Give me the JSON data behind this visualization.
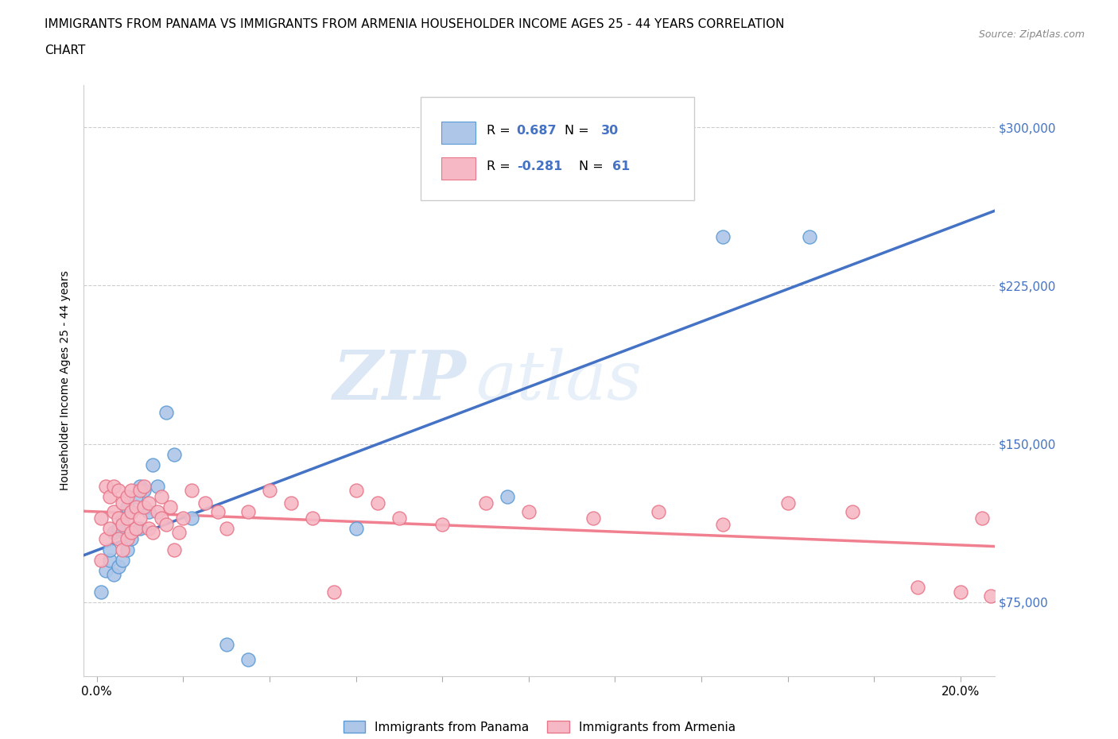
{
  "title_line1": "IMMIGRANTS FROM PANAMA VS IMMIGRANTS FROM ARMENIA HOUSEHOLDER INCOME AGES 25 - 44 YEARS CORRELATION",
  "title_line2": "CHART",
  "source_text": "Source: ZipAtlas.com",
  "ylabel": "Householder Income Ages 25 - 44 years",
  "x_ticks": [
    0.0,
    0.02,
    0.04,
    0.06,
    0.08,
    0.1,
    0.12,
    0.14,
    0.16,
    0.18,
    0.2
  ],
  "x_tick_labels_sparse": {
    "0.0": "0.0%",
    "0.10": "",
    "0.20": "20.0%"
  },
  "y_ticks": [
    75000,
    150000,
    225000,
    300000
  ],
  "y_tick_labels": [
    "$75,000",
    "$150,000",
    "$225,000",
    "$300,000"
  ],
  "ylim": [
    40000,
    320000
  ],
  "xlim": [
    -0.003,
    0.208
  ],
  "panama_color": "#aec6e8",
  "armenia_color": "#f5b8c4",
  "panama_edge_color": "#5b9bd5",
  "armenia_edge_color": "#e8768a",
  "panama_line_color": "#4472c4",
  "armenia_line_color": "#f08090",
  "panama_R": 0.687,
  "panama_N": 30,
  "armenia_R": -0.281,
  "armenia_N": 61,
  "watermark_zip": "ZIP",
  "watermark_atlas": "atlas",
  "legend_label_panama": "Immigrants from Panama",
  "legend_label_armenia": "Immigrants from Armenia",
  "panama_scatter_x": [
    0.001,
    0.002,
    0.003,
    0.003,
    0.004,
    0.004,
    0.005,
    0.005,
    0.006,
    0.006,
    0.007,
    0.007,
    0.008,
    0.008,
    0.009,
    0.01,
    0.01,
    0.011,
    0.012,
    0.013,
    0.014,
    0.016,
    0.018,
    0.022,
    0.03,
    0.035,
    0.06,
    0.095,
    0.145,
    0.165
  ],
  "panama_scatter_y": [
    80000,
    90000,
    95000,
    100000,
    88000,
    108000,
    92000,
    110000,
    95000,
    115000,
    100000,
    120000,
    105000,
    118000,
    125000,
    110000,
    130000,
    128000,
    118000,
    140000,
    130000,
    165000,
    145000,
    115000,
    55000,
    48000,
    110000,
    125000,
    248000,
    248000
  ],
  "armenia_scatter_x": [
    0.001,
    0.001,
    0.002,
    0.002,
    0.003,
    0.003,
    0.004,
    0.004,
    0.005,
    0.005,
    0.005,
    0.006,
    0.006,
    0.006,
    0.007,
    0.007,
    0.007,
    0.008,
    0.008,
    0.008,
    0.009,
    0.009,
    0.01,
    0.01,
    0.011,
    0.011,
    0.012,
    0.012,
    0.013,
    0.014,
    0.015,
    0.015,
    0.016,
    0.017,
    0.018,
    0.019,
    0.02,
    0.022,
    0.025,
    0.028,
    0.03,
    0.035,
    0.04,
    0.045,
    0.05,
    0.055,
    0.06,
    0.065,
    0.07,
    0.08,
    0.09,
    0.1,
    0.115,
    0.13,
    0.145,
    0.16,
    0.175,
    0.19,
    0.2,
    0.205,
    0.207
  ],
  "armenia_scatter_y": [
    95000,
    115000,
    105000,
    130000,
    110000,
    125000,
    118000,
    130000,
    105000,
    115000,
    128000,
    100000,
    112000,
    122000,
    105000,
    115000,
    125000,
    108000,
    118000,
    128000,
    110000,
    120000,
    115000,
    128000,
    120000,
    130000,
    110000,
    122000,
    108000,
    118000,
    115000,
    125000,
    112000,
    120000,
    100000,
    108000,
    115000,
    128000,
    122000,
    118000,
    110000,
    118000,
    128000,
    122000,
    115000,
    80000,
    128000,
    122000,
    115000,
    112000,
    122000,
    118000,
    115000,
    118000,
    112000,
    122000,
    118000,
    82000,
    80000,
    115000,
    78000
  ],
  "grid_color": "#cccccc",
  "grid_style": "--",
  "title_fontsize": 11,
  "axis_label_fontsize": 10,
  "tick_label_fontsize": 11
}
